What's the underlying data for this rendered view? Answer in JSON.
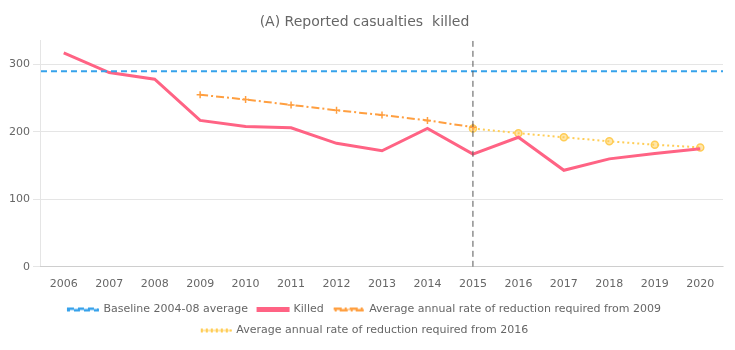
{
  "chart_data": {
    "type": "line",
    "title": "(A) Reported casualties  killed",
    "series": [
      {
        "name": "Baseline 2004-08 average",
        "type": "hline",
        "y": 290,
        "line_style": "dashed"
      },
      {
        "name": "Killed",
        "line_style": "solid",
        "x": [
          2006,
          2007,
          2008,
          2009,
          2010,
          2011,
          2012,
          2013,
          2014,
          2015,
          2016,
          2017,
          2018,
          2019,
          2020
        ],
        "values": [
          317,
          288,
          278,
          217,
          208,
          206,
          183,
          172,
          205,
          167,
          192,
          143,
          160,
          168,
          175
        ]
      },
      {
        "name": "Average annual rate of reduction required from 2009",
        "line_style": "dashdot",
        "marker": "plus",
        "x": [
          2009,
          2010,
          2011,
          2012,
          2013,
          2014,
          2015
        ],
        "values": [
          255,
          248,
          240,
          232,
          225,
          217,
          207
        ]
      },
      {
        "name": "Average annual rate of reduction required from 2016",
        "line_style": "dotted",
        "marker": "circle",
        "x": [
          2015,
          2016,
          2017,
          2018,
          2019,
          2020
        ],
        "values": [
          205,
          198,
          192,
          186,
          181,
          177
        ]
      }
    ],
    "vlines": [
      {
        "x": 2015,
        "line_style": "dashed"
      }
    ],
    "xlim": [
      2005.5,
      2020.5
    ],
    "xticks": [
      2006,
      2007,
      2008,
      2009,
      2010,
      2011,
      2012,
      2013,
      2014,
      2015,
      2016,
      2017,
      2018,
      2019,
      2020
    ],
    "ylim": [
      0,
      335
    ],
    "yticks": [
      0,
      100,
      200,
      300
    ],
    "grid": true,
    "legend": "bottom"
  }
}
